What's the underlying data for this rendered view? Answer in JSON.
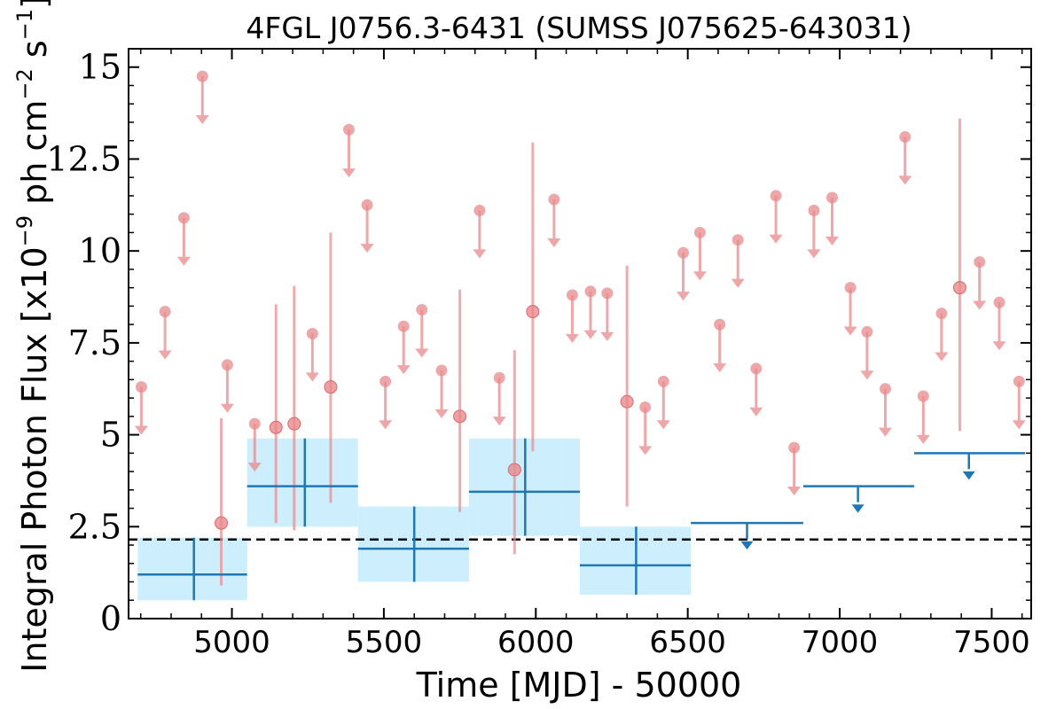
{
  "chart_data": {
    "type": "scatter",
    "title": "4FGL J0756.3-6431 (SUMSS J075625-643031)",
    "xlabel": "Time [MJD] - 50000",
    "ylabel_prefix": "Integral Photon Flux [x10",
    "ylabel_exp1": "−9",
    "ylabel_mid": " ph cm",
    "ylabel_exp2": "−2",
    "ylabel_mid2": " s",
    "ylabel_exp3": "−1",
    "ylabel_suffix": "]",
    "xlim": [
      4660,
      7630
    ],
    "ylim": [
      0,
      15.5
    ],
    "xticks": [
      5000,
      5500,
      6000,
      6500,
      7000,
      7500
    ],
    "xtick_labels": [
      "5000",
      "5500",
      "6000",
      "6500",
      "7000",
      "7500"
    ],
    "yticks": [
      0,
      2.5,
      5,
      7.5,
      10,
      12.5,
      15
    ],
    "ytick_labels": [
      "0",
      "2.5",
      "5",
      "7.5",
      "10",
      "12.5",
      "15"
    ],
    "grid": false,
    "colors": {
      "monthly": "#e8898c",
      "binned": "#1f77b4",
      "binned_band": "#cdeefc",
      "threshold": "#000000"
    },
    "threshold": 2.15,
    "series": [
      {
        "role": "monthly-upper-limits",
        "points": [
          [
            4702,
            6.3
          ],
          [
            4780,
            8.35
          ],
          [
            4842,
            10.9
          ],
          [
            4903,
            14.75
          ],
          [
            4985,
            6.9
          ],
          [
            5075,
            5.3
          ],
          [
            5265,
            7.75
          ],
          [
            5385,
            13.3
          ],
          [
            5445,
            11.25
          ],
          [
            5505,
            6.45
          ],
          [
            5565,
            7.95
          ],
          [
            5625,
            8.4
          ],
          [
            5690,
            6.75
          ],
          [
            5815,
            11.1
          ],
          [
            5880,
            6.55
          ],
          [
            6060,
            11.4
          ],
          [
            6120,
            8.8
          ],
          [
            6180,
            8.9
          ],
          [
            6235,
            8.85
          ],
          [
            6360,
            5.75
          ],
          [
            6420,
            6.45
          ],
          [
            6485,
            9.95
          ],
          [
            6540,
            10.5
          ],
          [
            6605,
            8.0
          ],
          [
            6665,
            10.3
          ],
          [
            6725,
            6.8
          ],
          [
            6790,
            11.5
          ],
          [
            6850,
            4.65
          ],
          [
            6915,
            11.1
          ],
          [
            6975,
            11.45
          ],
          [
            7035,
            9.0
          ],
          [
            7090,
            7.8
          ],
          [
            7150,
            6.25
          ],
          [
            7215,
            13.1
          ],
          [
            7275,
            6.05
          ],
          [
            7335,
            8.3
          ],
          [
            7460,
            9.7
          ],
          [
            7525,
            8.6
          ],
          [
            7590,
            6.45
          ]
        ]
      },
      {
        "role": "monthly-detections",
        "points": [
          {
            "x": 4965,
            "y": 2.6,
            "lo": 0.9,
            "hi": 5.45
          },
          {
            "x": 5145,
            "y": 5.2,
            "lo": 2.6,
            "hi": 8.55
          },
          {
            "x": 5205,
            "y": 5.3,
            "lo": 2.4,
            "hi": 9.05
          },
          {
            "x": 5325,
            "y": 6.3,
            "lo": 3.15,
            "hi": 10.5
          },
          {
            "x": 5750,
            "y": 5.5,
            "lo": 2.9,
            "hi": 8.95
          },
          {
            "x": 5930,
            "y": 4.05,
            "lo": 1.75,
            "hi": 7.3
          },
          {
            "x": 5990,
            "y": 8.35,
            "lo": 4.55,
            "hi": 12.95
          },
          {
            "x": 6300,
            "y": 5.9,
            "lo": 3.05,
            "hi": 9.6
          },
          {
            "x": 7395,
            "y": 9.0,
            "lo": 5.1,
            "hi": 13.6
          }
        ]
      },
      {
        "role": "binned-detections",
        "points": [
          {
            "x0": 4690,
            "x1": 5050,
            "xc": 4875,
            "y": 1.2,
            "lo": 0.5,
            "hi": 2.2
          },
          {
            "x0": 5050,
            "x1": 5415,
            "xc": 5240,
            "y": 3.6,
            "lo": 2.5,
            "hi": 4.9
          },
          {
            "x0": 5415,
            "x1": 5780,
            "xc": 5600,
            "y": 1.9,
            "lo": 1.0,
            "hi": 3.05
          },
          {
            "x0": 5780,
            "x1": 6145,
            "xc": 5965,
            "y": 3.45,
            "lo": 2.25,
            "hi": 4.9
          },
          {
            "x0": 6145,
            "x1": 6510,
            "xc": 6330,
            "y": 1.45,
            "lo": 0.65,
            "hi": 2.5
          }
        ]
      },
      {
        "role": "binned-upper-limits",
        "points": [
          {
            "x0": 6510,
            "x1": 6880,
            "xc": 6695,
            "y": 2.6
          },
          {
            "x0": 6880,
            "x1": 7245,
            "xc": 7060,
            "y": 3.6
          },
          {
            "x0": 7245,
            "x1": 7610,
            "xc": 7425,
            "y": 4.5
          }
        ]
      }
    ]
  }
}
